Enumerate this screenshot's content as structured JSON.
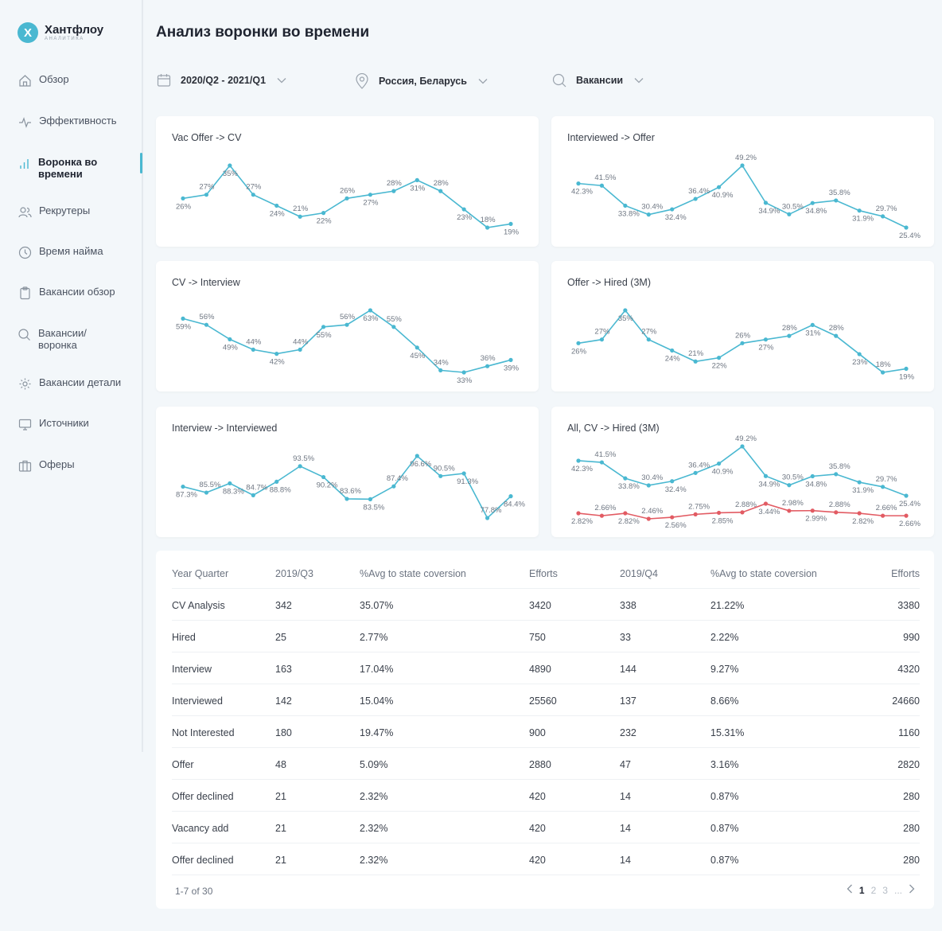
{
  "brand": {
    "name": "Хантфлоу",
    "sub": "аналитика",
    "mark": "X"
  },
  "nav": [
    {
      "label": "Обзор",
      "icon": "home-icon"
    },
    {
      "label": "Эффективность",
      "icon": "pulse-icon"
    },
    {
      "label": "Воронка во времени",
      "icon": "bar-chart-icon",
      "active": true
    },
    {
      "label": "Рекрутеры",
      "icon": "users-icon"
    },
    {
      "label": "Время найма",
      "icon": "clock-icon"
    },
    {
      "label": "Вакансии обзор",
      "icon": "clipboard-icon"
    },
    {
      "label": "Вакансии/ воронка",
      "icon": "search-icon"
    },
    {
      "label": "Вакансии детали",
      "icon": "gear-icon"
    },
    {
      "label": "Источники",
      "icon": "monitor-icon"
    },
    {
      "label": "Оферы",
      "icon": "briefcase-icon"
    }
  ],
  "page_title": "Анализ воронки во времени",
  "filters": {
    "period": "2020/Q2 - 2021/Q1",
    "region": "Россия, Беларусь",
    "search": "Вакансии"
  },
  "colors": {
    "accent": "#4ab8d1",
    "red": "#e25b63"
  },
  "chart_data": [
    {
      "type": "line",
      "title": "Vac Offer -> CV",
      "series": [
        {
          "values": [
            26,
            27,
            35,
            27,
            24,
            21,
            22,
            26,
            27,
            28,
            31,
            28,
            23,
            18,
            19
          ],
          "labels": [
            "26%",
            "27%",
            "35%",
            "27%",
            "24%",
            "21%",
            "22%",
            "26%",
            "27%",
            "28%",
            "31%",
            "28%",
            "23%",
            "18%",
            "19%"
          ]
        }
      ]
    },
    {
      "type": "line",
      "title": "Interviewed -> Offer",
      "series": [
        {
          "values": [
            42.3,
            41.5,
            33.8,
            30.4,
            32.4,
            36.4,
            40.9,
            49.2,
            34.9,
            30.5,
            34.8,
            35.8,
            31.9,
            29.7,
            25.4
          ],
          "labels": [
            "42.3%",
            "41.5%",
            "33.8%",
            "30.4%",
            "32.4%",
            "36.4%",
            "40.9%",
            "49.2%",
            "34.9%",
            "30.5%",
            "34.8%",
            "35.8%",
            "31.9%",
            "29.7%",
            "25.4%"
          ]
        }
      ]
    },
    {
      "type": "line",
      "title": "CV -> Interview",
      "series": [
        {
          "values": [
            59,
            56,
            49,
            44,
            42,
            44,
            55,
            56,
            63,
            55,
            45,
            34,
            33,
            36,
            39
          ],
          "labels": [
            "59%",
            "56%",
            "49%",
            "44%",
            "42%",
            "44%",
            "55%",
            "56%",
            "63%",
            "55%",
            "45%",
            "34%",
            "33%",
            "36%",
            "39%"
          ]
        }
      ]
    },
    {
      "type": "line",
      "title": "Offer -> Hired (3M)",
      "series": [
        {
          "values": [
            26,
            27,
            35,
            27,
            24,
            21,
            22,
            26,
            27,
            28,
            31,
            28,
            23,
            18,
            19
          ],
          "labels": [
            "26%",
            "27%",
            "35%",
            "27%",
            "24%",
            "21%",
            "22%",
            "26%",
            "27%",
            "28%",
            "31%",
            "28%",
            "23%",
            "18%",
            "19%"
          ]
        }
      ]
    },
    {
      "type": "line",
      "title": "Interview -> Interviewed",
      "series": [
        {
          "values": [
            87.3,
            85.5,
            88.3,
            84.7,
            88.8,
            93.5,
            90.2,
            83.6,
            83.5,
            87.4,
            96.6,
            90.5,
            91.3,
            77.8,
            84.4
          ],
          "labels": [
            "87.3%",
            "85.5%",
            "88.3%",
            "84.7%",
            "88.8%",
            "93.5%",
            "90.2%",
            "83.6%",
            "83.5%",
            "87.4%",
            "96.6%",
            "90.5%",
            "91.3%",
            "77.8%",
            "84.4%"
          ]
        }
      ]
    },
    {
      "type": "line",
      "title": "All, CV -> Hired (3M)",
      "series": [
        {
          "values": [
            42.3,
            41.5,
            33.8,
            30.4,
            32.4,
            36.4,
            40.9,
            49.2,
            34.9,
            30.5,
            34.8,
            35.8,
            31.9,
            29.7,
            25.4
          ],
          "labels": [
            "42.3%",
            "41.5%",
            "33.8%",
            "30.4%",
            "32.4%",
            "36.4%",
            "40.9%",
            "49.2%",
            "34.9%",
            "30.5%",
            "34.8%",
            "35.8%",
            "31.9%",
            "29.7%",
            "25.4%"
          ]
        },
        {
          "values": [
            2.82,
            2.66,
            2.82,
            2.46,
            2.56,
            2.75,
            2.85,
            2.88,
            3.44,
            2.98,
            2.99,
            2.88,
            2.82,
            2.66,
            2.66
          ],
          "labels": [
            "2.82%",
            "2.66%",
            "2.82%",
            "2.46%",
            "2.56%",
            "2.75%",
            "2.85%",
            "2.88%",
            "3.44%",
            "2.98%",
            "2.99%",
            "2.88%",
            "2.82%",
            "2.66%",
            "2.66%"
          ]
        }
      ]
    }
  ],
  "table": {
    "headers": [
      "Year Quarter",
      "2019/Q3",
      "%Avg to state coversion",
      "Efforts",
      "2019/Q4",
      "%Avg to state coversion",
      "Efforts"
    ],
    "rows": [
      [
        "CV Analysis",
        "342",
        "35.07%",
        "3420",
        "338",
        "21.22%",
        "3380"
      ],
      [
        "Hired",
        "25",
        "2.77%",
        "750",
        "33",
        "2.22%",
        "990"
      ],
      [
        "Interview",
        "163",
        "17.04%",
        "4890",
        "144",
        "9.27%",
        "4320"
      ],
      [
        "Interviewed",
        "142",
        "15.04%",
        "25560",
        "137",
        "8.66%",
        "24660"
      ],
      [
        "Not Interested",
        "180",
        "19.47%",
        "900",
        "232",
        "15.31%",
        "1160"
      ],
      [
        "Offer",
        "48",
        "5.09%",
        "2880",
        "47",
        "3.16%",
        "2820"
      ],
      [
        "Offer declined",
        "21",
        "2.32%",
        "420",
        "14",
        "0.87%",
        "280"
      ],
      [
        "Vacancy add",
        "21",
        "2.32%",
        "420",
        "14",
        "0.87%",
        "280"
      ],
      [
        "Offer declined",
        "21",
        "2.32%",
        "420",
        "14",
        "0.87%",
        "280"
      ]
    ],
    "pagination": {
      "info": "1-7 of 30",
      "pages": [
        "1",
        "2",
        "3",
        "..."
      ],
      "current": "1"
    }
  }
}
